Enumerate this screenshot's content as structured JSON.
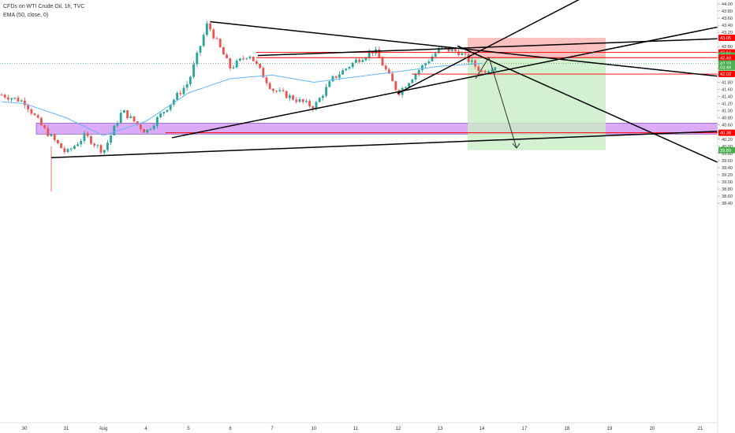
{
  "header": {
    "symbol_line": "CFDs on WTI Crude Oil, 1h, TVC",
    "indicator_line": "EMA (50, close, 0)"
  },
  "colors": {
    "up_candle": "#26a69a",
    "down_candle": "#ef5350",
    "ema": "#64b5f6",
    "trendline": "#000000",
    "level_line": "#ff0000",
    "support_zone": "#d59cf7",
    "stop_zone": "#f8a6a6",
    "target_zone": "#c8ecc4",
    "axis_text": "#333333"
  },
  "chart_data": {
    "type": "candlestick",
    "title": "",
    "symbol": "CFDs on WTI Crude Oil, 1h, TVC",
    "indicators": [
      "EMA (50, close, 0)"
    ],
    "ylim": [
      38.3,
      44.1
    ],
    "y_ticks": [
      "44.00",
      "43.80",
      "43.60",
      "43.40",
      "43.20",
      "43.00",
      "42.80",
      "42.60",
      "42.40",
      "42.20",
      "42.00",
      "41.80",
      "41.60",
      "41.40",
      "41.20",
      "41.00",
      "40.80",
      "40.60",
      "40.40",
      "40.20",
      "40.00",
      "39.80",
      "39.60",
      "39.40",
      "39.20",
      "39.00",
      "38.80",
      "38.60",
      "38.40"
    ],
    "x_ticks": [
      "30",
      "31",
      "Aug",
      "4",
      "5",
      "6",
      "7",
      "10",
      "11",
      "12",
      "13",
      "14",
      "17",
      "18",
      "19",
      "20",
      "21"
    ],
    "price_tags": [
      {
        "label": "43.05",
        "value": 43.05,
        "color": "#ff0000"
      },
      {
        "label": "42.64",
        "value": 42.64,
        "color": "#ff0000"
      },
      {
        "label": "42.55",
        "value": 42.55,
        "color": "#4caf50"
      },
      {
        "label": "42.49",
        "value": 42.49,
        "color": "#ff0000"
      },
      {
        "label": "42.33",
        "value": 42.33,
        "color": "#4caf50"
      },
      {
        "label": "03:49",
        "value": 42.22,
        "color": "#4caf50"
      },
      {
        "label": "42.03",
        "value": 42.03,
        "color": "#ff0000"
      },
      {
        "label": "40.38",
        "value": 40.38,
        "color": "#ff0000"
      },
      {
        "label": "39.89",
        "value": 39.89,
        "color": "#4caf50"
      }
    ],
    "levels": [
      42.64,
      42.49,
      42.03,
      40.38
    ],
    "current_price": 42.33,
    "support_zone": {
      "from": 40.34,
      "to": 40.65
    },
    "position": {
      "type": "short",
      "entry": 42.49,
      "stop": 43.05,
      "target": 39.89
    },
    "trendlines": [
      {
        "from": [
          "Jul 31",
          39.68
        ],
        "to": [
          "Aug 21",
          40.42
        ]
      },
      {
        "from": [
          "Aug 4",
          40.24
        ],
        "to": [
          "Aug 21",
          43.35
        ]
      },
      {
        "from": [
          "Aug 5",
          43.5
        ],
        "to": [
          "Aug 21",
          41.97
        ]
      },
      {
        "from": [
          "Aug 6",
          42.55
        ],
        "to": [
          "Aug 21",
          43.02
        ]
      },
      {
        "from": [
          "Aug 11",
          41.48
        ],
        "to": [
          "Aug 18",
          44.2
        ]
      },
      {
        "from": [
          "Aug 13",
          42.82
        ],
        "to": [
          "Aug 21",
          39.55
        ]
      }
    ],
    "price_path": [
      [
        "Jul 29",
        41.45
      ],
      [
        "Jul 30",
        41.25
      ],
      [
        "Jul 30",
        40.5
      ],
      [
        "Jul 31",
        39.8
      ],
      [
        "Jul 31",
        40.3
      ],
      [
        "Aug 3",
        39.85
      ],
      [
        "Aug 3",
        41.0
      ],
      [
        "Aug 4",
        40.4
      ],
      [
        "Aug 5",
        41.8
      ],
      [
        "Aug 5",
        43.45
      ],
      [
        "Aug 6",
        42.2
      ],
      [
        "Aug 6",
        42.6
      ],
      [
        "Aug 7",
        41.6
      ],
      [
        "Aug 10",
        41.1
      ],
      [
        "Aug 10",
        41.9
      ],
      [
        "Aug 11",
        42.4
      ],
      [
        "Aug 11",
        42.7
      ],
      [
        "Aug 12",
        41.5
      ],
      [
        "Aug 12",
        42.1
      ],
      [
        "Aug 13",
        42.75
      ],
      [
        "Aug 13",
        42.65
      ],
      [
        "Aug 14",
        42.1
      ],
      [
        "Aug 14",
        42.33
      ]
    ],
    "ema_path": [
      [
        "Jul 29",
        41.25
      ],
      [
        "Jul 30",
        41.2
      ],
      [
        "Jul 31",
        40.8
      ],
      [
        "Aug 3",
        40.3
      ],
      [
        "Aug 4",
        40.7
      ],
      [
        "Aug 5",
        41.5
      ],
      [
        "Aug 6",
        41.9
      ],
      [
        "Aug 7",
        42.0
      ],
      [
        "Aug 10",
        41.8
      ],
      [
        "Aug 11",
        41.95
      ],
      [
        "Aug 12",
        42.1
      ],
      [
        "Aug 13",
        42.25
      ],
      [
        "Aug 14",
        42.33
      ]
    ]
  }
}
